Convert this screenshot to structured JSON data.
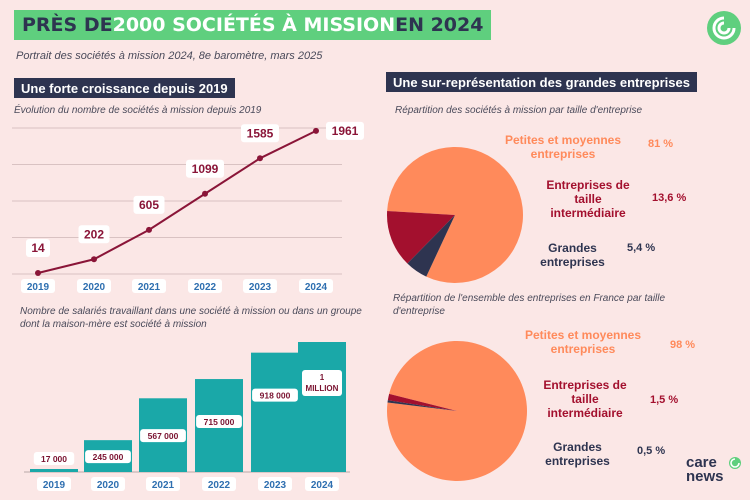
{
  "header": {
    "title_a": "PRÈS DE ",
    "title_b": "2000 SOCIÉTÉS À MISSION",
    "title_c": " EN 2024",
    "subtitle": "Portrait des sociétés à mission 2024, 8e baromètre, mars 2025"
  },
  "left": {
    "heading": "Une forte croissance depuis 2019",
    "line_caption": "Évolution du nombre de sociétés à mission depuis 2019",
    "bar_caption": "Nombre de salariés travaillant dans une société à mission ou dans un groupe dont la maison-mère est société à mission"
  },
  "right": {
    "heading": "Une sur-représentation des grandes entreprises",
    "pie1_caption": "Répartition des sociétés à mission par taille d'entreprise",
    "pie2_caption": "Répartition de l'ensemble des entreprises en France par taille d'entreprise"
  },
  "colors": {
    "pme": "#ff8a5b",
    "eti": "#a3102e",
    "ge": "#2e3450",
    "line": "#8a1538",
    "bar": "#1aa8a8",
    "accent_green": "#5fcf7e"
  },
  "chart_data": [
    {
      "type": "line",
      "title": "Évolution du nombre de sociétés à mission depuis 2019",
      "categories": [
        "2019",
        "2020",
        "2021",
        "2022",
        "2023",
        "2024"
      ],
      "values": [
        14,
        202,
        605,
        1099,
        1585,
        1961
      ],
      "labels": [
        "14",
        "202",
        "605",
        "1099",
        "1585",
        "1961"
      ],
      "grid": true
    },
    {
      "type": "bar",
      "title": "Nombre de salariés travaillant dans une société à mission ou dans un groupe dont la maison-mère est société à mission",
      "categories": [
        "2019",
        "2020",
        "2021",
        "2022",
        "2023",
        "2024"
      ],
      "values": [
        17000,
        245000,
        567000,
        715000,
        918000,
        1000000
      ],
      "labels": [
        "17 000",
        "245 000",
        "567 000",
        "715 000",
        "918 000",
        "1 MILLION"
      ]
    },
    {
      "type": "pie",
      "title": "Répartition des sociétés à mission par taille d'entreprise",
      "slices": [
        {
          "name": "Petites et moyennes entreprises",
          "value": 81,
          "label": "81 %",
          "color": "#ff8a5b"
        },
        {
          "name": "Entreprises de taille intermédiaire",
          "value": 13.6,
          "label": "13,6 %",
          "color": "#a3102e"
        },
        {
          "name": "Grandes entreprises",
          "value": 5.4,
          "label": "5,4 %",
          "color": "#2e3450"
        }
      ]
    },
    {
      "type": "pie",
      "title": "Répartition de l'ensemble des entreprises en France par taille d'entreprise",
      "slices": [
        {
          "name": "Petites et moyennes entreprises",
          "value": 98,
          "label": "98 %",
          "color": "#ff8a5b"
        },
        {
          "name": "Entreprises de taille intermédiaire",
          "value": 1.5,
          "label": "1,5 %",
          "color": "#a3102e"
        },
        {
          "name": "Grandes entreprises",
          "value": 0.5,
          "label": "0,5 %",
          "color": "#2e3450"
        }
      ]
    }
  ],
  "pie_text": {
    "p1": {
      "pme": "Petites et moyennes entreprises",
      "pme_pct": "81 %",
      "eti": "Entreprises de taille intermédiaire",
      "eti_pct": "13,6 %",
      "ge": "Grandes entreprises",
      "ge_pct": "5,4 %"
    },
    "p2": {
      "pme": "Petites et moyennes entreprises",
      "pme_pct": "98 %",
      "eti": "Entreprises de taille intermédiaire",
      "eti_pct": "1,5 %",
      "ge": "Grandes entreprises",
      "ge_pct": "0,5 %"
    }
  },
  "brand": {
    "logo_text_1": "care",
    "logo_text_2": "news"
  }
}
